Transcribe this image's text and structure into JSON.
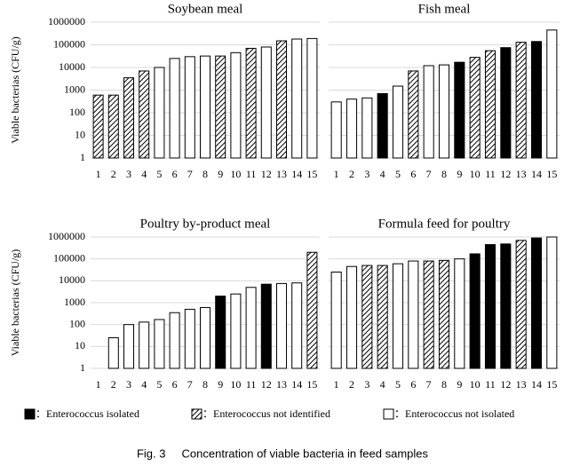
{
  "chart_data": [
    {
      "type": "bar",
      "title": "Soybean meal",
      "ylabel": "Viable bacterias (CFU/g)",
      "log": true,
      "ylim": [
        1,
        1000000
      ],
      "yticks": [
        1,
        10,
        100,
        1000,
        10000,
        100000,
        1000000
      ],
      "ytick_labels": true,
      "grid": true,
      "categories": [
        "1",
        "2",
        "3",
        "4",
        "5",
        "6",
        "7",
        "8",
        "9",
        "10",
        "11",
        "12",
        "13",
        "14",
        "15"
      ],
      "values": [
        600,
        600,
        3500,
        7000,
        10000,
        25000,
        30000,
        32000,
        32000,
        45000,
        70000,
        80000,
        150000,
        180000,
        190000
      ],
      "groups": [
        1,
        1,
        1,
        1,
        2,
        2,
        2,
        2,
        1,
        2,
        1,
        2,
        1,
        2,
        2
      ]
    },
    {
      "type": "bar",
      "title": "Fish meal",
      "log": true,
      "ylim": [
        1,
        1000000
      ],
      "yticks": [
        1,
        10,
        100,
        1000,
        10000,
        100000,
        1000000
      ],
      "ytick_labels": false,
      "grid": true,
      "categories": [
        "1",
        "2",
        "3",
        "4",
        "5",
        "6",
        "7",
        "8",
        "9",
        "10",
        "11",
        "12",
        "13",
        "14",
        "15"
      ],
      "values": [
        300,
        400,
        450,
        700,
        1500,
        7000,
        12000,
        13000,
        17000,
        28000,
        55000,
        75000,
        130000,
        140000,
        450000
      ],
      "groups": [
        2,
        2,
        2,
        0,
        2,
        1,
        2,
        2,
        0,
        1,
        1,
        0,
        1,
        0,
        2
      ]
    },
    {
      "type": "bar",
      "title": "Poultry by-product meal",
      "ylabel": "Viable bacterias (CFU/g)",
      "log": true,
      "ylim": [
        1,
        1000000
      ],
      "yticks": [
        1,
        10,
        100,
        1000,
        10000,
        100000,
        1000000
      ],
      "ytick_labels": true,
      "grid": true,
      "categories": [
        "1",
        "2",
        "3",
        "4",
        "5",
        "6",
        "7",
        "8",
        "9",
        "10",
        "11",
        "12",
        "13",
        "14",
        "15"
      ],
      "values": [
        null,
        25,
        100,
        130,
        170,
        350,
        500,
        600,
        2000,
        2500,
        5000,
        7000,
        7500,
        8000,
        200000
      ],
      "groups": [
        2,
        2,
        2,
        2,
        2,
        2,
        2,
        2,
        0,
        2,
        2,
        0,
        2,
        2,
        1
      ]
    },
    {
      "type": "bar",
      "title": "Formula feed for poultry",
      "log": true,
      "ylim": [
        1,
        1000000
      ],
      "yticks": [
        1,
        10,
        100,
        1000,
        10000,
        100000,
        1000000
      ],
      "ytick_labels": false,
      "grid": true,
      "categories": [
        "1",
        "2",
        "3",
        "4",
        "5",
        "6",
        "7",
        "8",
        "9",
        "10",
        "11",
        "12",
        "13",
        "14",
        "15"
      ],
      "values": [
        25000,
        45000,
        50000,
        50000,
        60000,
        80000,
        80000,
        85000,
        100000,
        170000,
        450000,
        480000,
        700000,
        900000,
        1000000
      ],
      "groups": [
        2,
        2,
        1,
        1,
        2,
        2,
        1,
        1,
        2,
        0,
        0,
        0,
        1,
        0,
        2
      ]
    }
  ],
  "legend": [
    {
      "label": "：Enterococcus isolated",
      "style": "solid"
    },
    {
      "label": "：Enterococcus not identified",
      "style": "hatch"
    },
    {
      "label": "：Enterococcus not isolated",
      "style": "open"
    }
  ],
  "caption": "Fig. 3     Concentration of viable bacteria in feed samples"
}
